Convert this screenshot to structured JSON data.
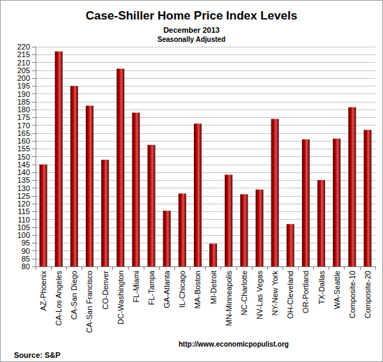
{
  "chart_data": {
    "type": "bar",
    "title": "Case-Shiller Home Price Index Levels",
    "subtitle": [
      "December 2013",
      "Seasonally Adjusted"
    ],
    "annotations": [
      "http://www.economicpopulist.org",
      "Source: S&P"
    ],
    "categories": [
      "AZ-Phoenix",
      "CA-Los Angeles",
      "CA-San Diego",
      "CA-San Francisco",
      "CO-Denver",
      "DC-Washington",
      "FL-Miami",
      "FL-Tampa",
      "GA-Atlanta",
      "IL-Chicago",
      "MA-Boston",
      "MI-Detroit",
      "MN-Minneapolis",
      "NC-Charlotte",
      "NV-Las Vegas",
      "NY-New York",
      "OH-Cleveland",
      "OR-Portland",
      "TX-Dallas",
      "WA-Seattle",
      "Composite-10",
      "Composite-20"
    ],
    "values": [
      145,
      217,
      195,
      182.5,
      148,
      206,
      178,
      157.5,
      115.5,
      126.5,
      171,
      94.5,
      138.5,
      126,
      129,
      174,
      107,
      161,
      135,
      161.5,
      181.5,
      167
    ],
    "color": "#b00000",
    "ylim": [
      80,
      220
    ],
    "yticks": [
      80,
      85,
      90,
      95,
      100,
      105,
      110,
      115,
      120,
      125,
      130,
      135,
      140,
      145,
      150,
      155,
      160,
      165,
      170,
      175,
      180,
      185,
      190,
      195,
      200,
      205,
      210,
      215,
      220
    ],
    "grid": true,
    "data_labels": false
  }
}
